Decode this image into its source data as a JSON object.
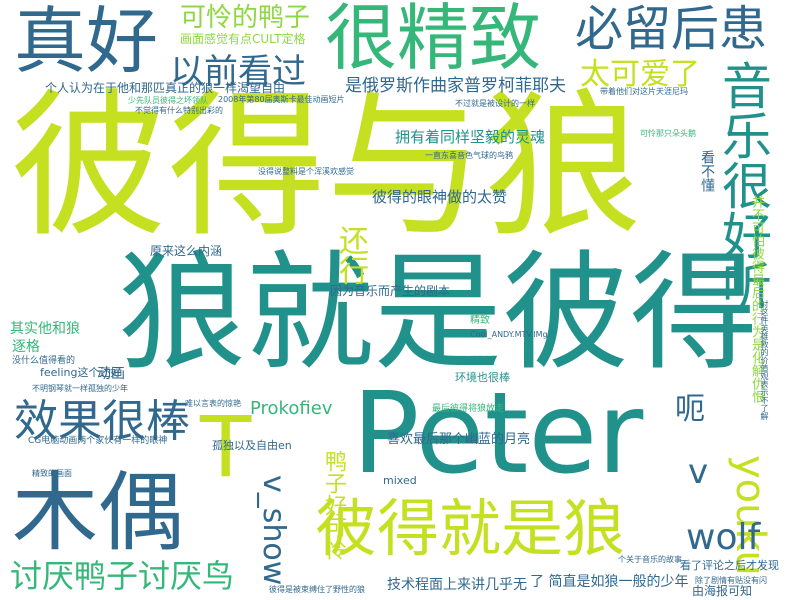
{
  "colors": {
    "yellow_green": "#c5e021",
    "lime": "#8fd744",
    "green": "#35b779",
    "teal": "#21918c",
    "blue": "#31688e",
    "navy": "#443a83",
    "purple": "#440154"
  },
  "words": [
    {
      "text": "彼得与狼",
      "color": "#c5e021"
    },
    {
      "text": "狼就是彼得",
      "color": "#21918c"
    },
    {
      "text": "Peter",
      "color": "#21918c"
    },
    {
      "text": "木偶",
      "color": "#31688e"
    },
    {
      "text": "真好",
      "color": "#31688e"
    },
    {
      "text": "很精致",
      "color": "#35b779"
    },
    {
      "text": "彼得就是狼",
      "color": "#c5e021"
    },
    {
      "text": "必留后患",
      "color": "#31688e"
    },
    {
      "text": "音乐很好听",
      "color": "#21918c"
    },
    {
      "text": "效果很棒",
      "color": "#31688e"
    },
    {
      "text": "讨厌鸭子讨厌鸟",
      "color": "#35b779"
    },
    {
      "text": "以前看过",
      "color": "#31688e"
    },
    {
      "text": "可怜的鸭子",
      "color": "#8fd744"
    },
    {
      "text": "太可爱了",
      "color": "#c5e021"
    },
    {
      "text": "youku",
      "color": "#c5e021"
    },
    {
      "text": "wolf",
      "color": "#31688e"
    },
    {
      "text": "v_show",
      "color": "#31688e"
    },
    {
      "text": "还行",
      "color": "#c5e021"
    },
    {
      "text": "呃",
      "color": "#31688e"
    },
    {
      "text": "T",
      "color": "#c5e021"
    },
    {
      "text": "v",
      "color": "#31688e"
    },
    {
      "text": "Prokofiev",
      "color": "#35b779"
    },
    {
      "text": "鸭子好可怜",
      "color": "#c5e021"
    },
    {
      "text": "是俄罗斯作曲家普罗柯菲耶夫",
      "color": "#31688e"
    },
    {
      "text": "拥有着同样坚毅的灵魂",
      "color": "#21918c"
    },
    {
      "text": "彼得的眼神做的太赞",
      "color": "#31688e"
    },
    {
      "text": "技术程面上来讲几乎无",
      "color": "#31688e"
    },
    {
      "text": "其实他和狼",
      "color": "#35b779"
    },
    {
      "text": "逐格",
      "color": "#35b779"
    },
    {
      "text": "动画",
      "color": "#31688e"
    },
    {
      "text": "看不懂",
      "color": "#31688e"
    },
    {
      "text": "并不可怕彼得最后的行为是化解仇恨",
      "color": "#8fd744"
    },
    {
      "text": "画面感觉有点CULT定格",
      "color": "#8fd744"
    },
    {
      "text": "个人认为在于他和那匹真正的狼一样渴望自由",
      "color": "#31688e"
    },
    {
      "text": "喜欢最后那个幽蓝的月亮",
      "color": "#31688e"
    },
    {
      "text": "了 简直是如狼一般的少年",
      "color": "#31688e"
    },
    {
      "text": "因为音乐而产生的剧本",
      "color": "#31688e"
    },
    {
      "text": "原来这么内涵",
      "color": "#31688e"
    },
    {
      "text": "孤独以及自由en",
      "color": "#31688e"
    },
    {
      "text": "环境也很棒",
      "color": "#21918c"
    },
    {
      "text": "feeling这个还好",
      "color": "#31688e"
    },
    {
      "text": "mixed",
      "color": "#31688e"
    },
    {
      "text": "由海报可知",
      "color": "#31688e"
    },
    {
      "text": "看了评论之后才发现",
      "color": "#31688e"
    },
    {
      "text": "2008年第80届奥斯卡最佳动画短片",
      "color": "#31688e"
    },
    {
      "text": "少先队员彼得之坏领队",
      "color": "#35b779"
    },
    {
      "text": "不觉得有什么特别出彩的",
      "color": "#31688e"
    },
    {
      "text": "可怜那只朵头鹅",
      "color": "#35b779"
    },
    {
      "text": "一直东喜音色气球的鸟鸦",
      "color": "#31688e"
    },
    {
      "text": "没得说整料是个浑溪欢感觉",
      "color": "#31688e"
    },
    {
      "text": "精致",
      "color": "#35b779"
    },
    {
      "text": "带着他们对这片天涯尼玛",
      "color": "#31688e"
    },
    {
      "text": "对这件英雄救的价值观表示不了解",
      "color": "#31688e"
    },
    {
      "text": "彼得是被束缚住了野性的狼",
      "color": "#31688e"
    },
    {
      "text": "不过就是被设计的一样",
      "color": "#31688e"
    },
    {
      "text": "CG电脑动画两个家伙有一样的眼神",
      "color": "#31688e"
    },
    {
      "text": "个关于音乐的故事",
      "color": "#31688e"
    },
    {
      "text": "除了剧情有贴没有闪",
      "color": "#31688e"
    },
    {
      "text": "精致的画面",
      "color": "#31688e"
    },
    {
      "text": "没什么值得看的",
      "color": "#31688e"
    },
    {
      "text": "不明钢琴就一样孤独的少年",
      "color": "#31688e"
    },
    {
      "text": "最后彼得将狼放走",
      "color": "#35b779"
    },
    {
      "text": "难以言表的惊艳",
      "color": "#31688e"
    },
    {
      "text": "Cool_ANDY.MTV.lMg",
      "color": "#31688e"
    }
  ]
}
